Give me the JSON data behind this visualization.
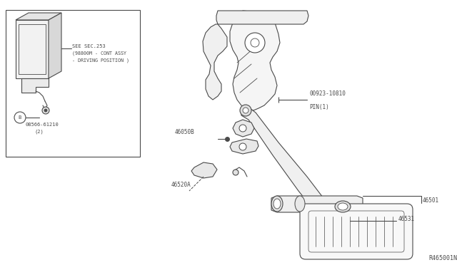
{
  "bg_color": "#ffffff",
  "line_color": "#4a4a4a",
  "fig_width": 6.4,
  "fig_height": 3.72,
  "dpi": 100,
  "diagram_ref": "R465001N",
  "inset_label_see": "SEE SEC.253",
  "inset_label_paren": "(98800M - CONT ASSY",
  "inset_label_drive": "- DRIVING POSITION )",
  "inset_part": "08566-61210",
  "inset_part_qty": "(2)",
  "font_size_labels": 5.5,
  "font_size_ref": 6.0
}
